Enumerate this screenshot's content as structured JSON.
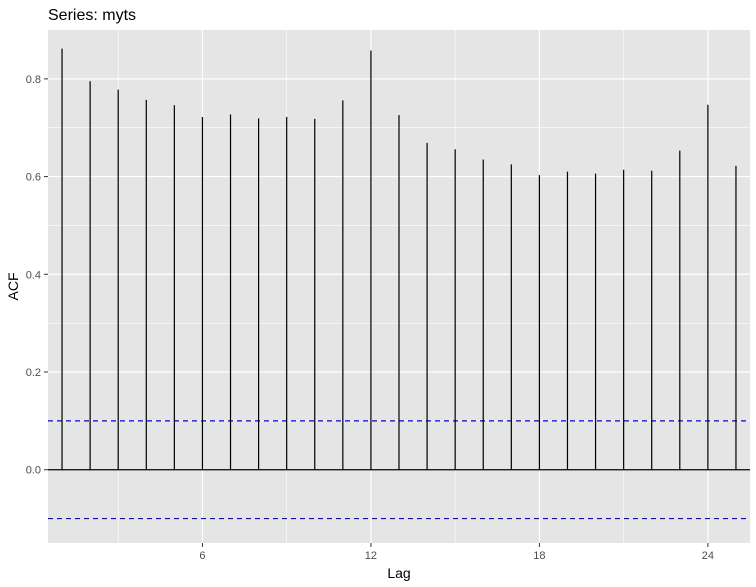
{
  "chart_data": {
    "type": "bar",
    "subtype": "acf-lollipop",
    "title": "Series: myts",
    "xlabel": "Lag",
    "ylabel": "ACF",
    "x": [
      1,
      2,
      3,
      4,
      5,
      6,
      7,
      8,
      9,
      10,
      11,
      12,
      13,
      14,
      15,
      16,
      17,
      18,
      19,
      20,
      21,
      22,
      23,
      24,
      25
    ],
    "values": [
      0.862,
      0.795,
      0.778,
      0.757,
      0.746,
      0.722,
      0.727,
      0.719,
      0.722,
      0.718,
      0.756,
      0.858,
      0.726,
      0.669,
      0.656,
      0.635,
      0.625,
      0.603,
      0.61,
      0.606,
      0.614,
      0.612,
      0.653,
      0.747,
      0.622
    ],
    "xlim": [
      0.5,
      25.5
    ],
    "ylim": [
      -0.15,
      0.9
    ],
    "xticks": [
      6,
      12,
      18,
      24
    ],
    "yticks": [
      0.0,
      0.2,
      0.4,
      0.6,
      0.8
    ],
    "ci_upper": 0.1,
    "ci_lower": -0.1,
    "grid": true,
    "colors": {
      "panel_background": "#e5e5e5",
      "grid": "#ffffff",
      "bars": "#000000",
      "ci_lines": "#0000ff",
      "zero_line": "#000000"
    }
  }
}
